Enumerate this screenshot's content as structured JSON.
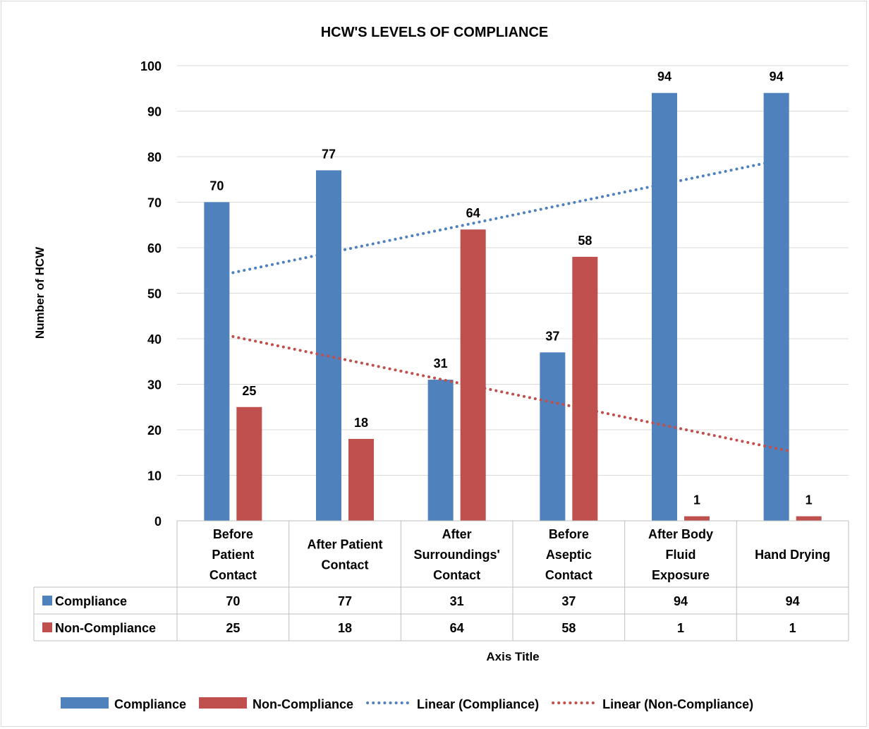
{
  "chart_data": {
    "type": "bar",
    "title": "HCW'S LEVELS OF COMPLIANCE",
    "xlabel": "Axis Title",
    "ylabel": "Number of HCW",
    "ylim": [
      0,
      100
    ],
    "ytick_step": 10,
    "grid": true,
    "legend_position": "bottom",
    "data_table": true,
    "categories": [
      [
        "Before",
        "Patient",
        "Contact"
      ],
      [
        "After Patient",
        "Contact"
      ],
      [
        "After",
        "Surroundings'",
        "Contact"
      ],
      [
        "Before",
        "Aseptic",
        "Contact"
      ],
      [
        "After Body",
        "Fluid",
        "Exposure"
      ],
      [
        "Hand Drying"
      ]
    ],
    "series": [
      {
        "name": "Compliance",
        "color": "#4f81bd",
        "values": [
          70,
          77,
          31,
          37,
          94,
          94
        ]
      },
      {
        "name": "Non-Compliance",
        "color": "#c0504d",
        "values": [
          25,
          18,
          64,
          58,
          1,
          1
        ]
      }
    ],
    "trendlines": [
      {
        "name": "Linear (Compliance)",
        "series": 0,
        "style": "dotted",
        "color": "#4f81bd"
      },
      {
        "name": "Linear (Non-Compliance)",
        "series": 1,
        "style": "dotted",
        "color": "#c0504d"
      }
    ]
  }
}
